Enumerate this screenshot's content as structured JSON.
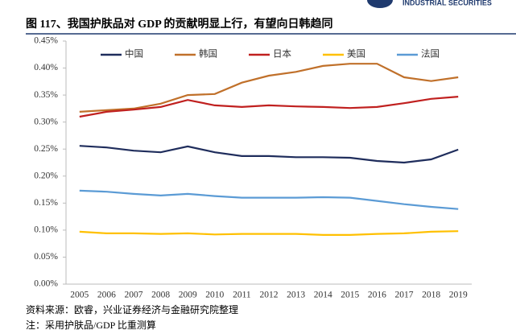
{
  "header": {
    "brand": "INDUSTRIAL SECURITIES"
  },
  "chart_data": {
    "type": "line",
    "title": "图 117、我国护肤品对 GDP 的贡献明显上行，有望向日韩趋同",
    "categories": [
      "2005",
      "2006",
      "2007",
      "2008",
      "2009",
      "2010",
      "2011",
      "2012",
      "2013",
      "2014",
      "2015",
      "2016",
      "2017",
      "2018",
      "2019"
    ],
    "series": [
      {
        "name": "中国",
        "color": "#1f2d5c",
        "values": [
          0.256,
          0.253,
          0.247,
          0.244,
          0.255,
          0.244,
          0.237,
          0.237,
          0.235,
          0.235,
          0.234,
          0.228,
          0.225,
          0.231,
          0.249
        ]
      },
      {
        "name": "韩国",
        "color": "#c0702a",
        "values": [
          0.319,
          0.322,
          0.325,
          0.334,
          0.35,
          0.352,
          0.373,
          0.386,
          0.393,
          0.404,
          0.408,
          0.408,
          0.383,
          0.376,
          0.383
        ]
      },
      {
        "name": "日本",
        "color": "#c0201f",
        "values": [
          0.31,
          0.319,
          0.323,
          0.328,
          0.341,
          0.331,
          0.328,
          0.331,
          0.329,
          0.328,
          0.326,
          0.328,
          0.335,
          0.343,
          0.347
        ]
      },
      {
        "name": "美国",
        "color": "#ffc000",
        "values": [
          0.097,
          0.094,
          0.094,
          0.093,
          0.094,
          0.092,
          0.093,
          0.093,
          0.093,
          0.091,
          0.091,
          0.093,
          0.094,
          0.097,
          0.098
        ]
      },
      {
        "name": "法国",
        "color": "#5b9bd5",
        "values": [
          0.173,
          0.171,
          0.167,
          0.164,
          0.167,
          0.163,
          0.16,
          0.16,
          0.16,
          0.161,
          0.16,
          0.154,
          0.148,
          0.143,
          0.139
        ]
      }
    ],
    "ylim": [
      0,
      0.45
    ],
    "yticks": [
      {
        "value": 0,
        "label": "0.00%"
      },
      {
        "value": 0.05,
        "label": "0.05%"
      },
      {
        "value": 0.1,
        "label": "0.10%"
      },
      {
        "value": 0.15,
        "label": "0.15%"
      },
      {
        "value": 0.2,
        "label": "0.20%"
      },
      {
        "value": 0.25,
        "label": "0.25%"
      },
      {
        "value": 0.3,
        "label": "0.30%"
      },
      {
        "value": 0.35,
        "label": "0.35%"
      },
      {
        "value": 0.4,
        "label": "0.40%"
      },
      {
        "value": 0.45,
        "label": "0.45%"
      }
    ],
    "grid": false,
    "legend": "top"
  },
  "footer": {
    "source": "资料来源：欧睿，兴业证券经济与金融研究院整理",
    "note": "注：采用护肤品/GDP 比重测算"
  }
}
